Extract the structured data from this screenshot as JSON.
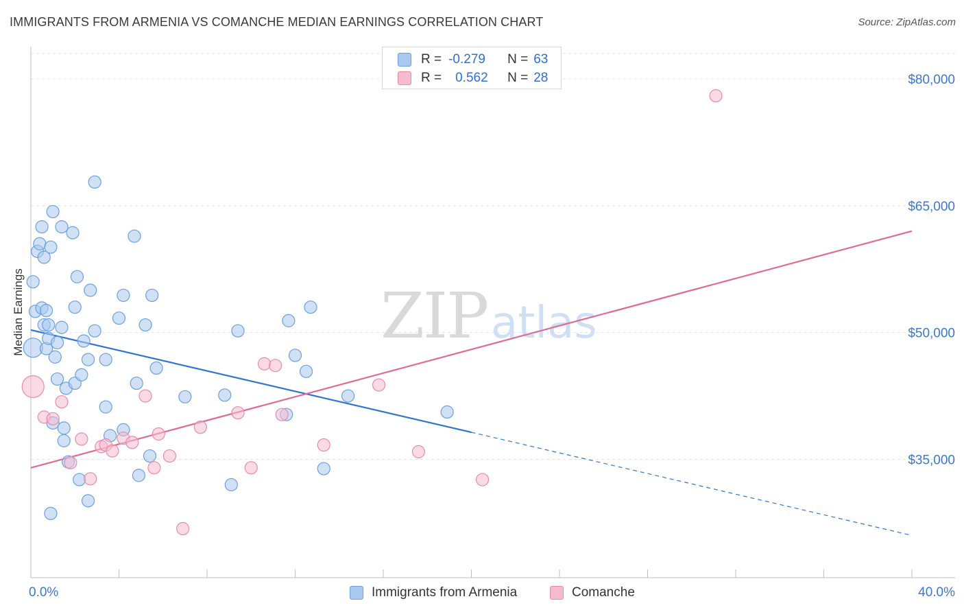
{
  "title": "IMMIGRANTS FROM ARMENIA VS COMANCHE MEDIAN EARNINGS CORRELATION CHART",
  "source": "Source: ZipAtlas.com",
  "watermark": {
    "zip": "ZIP",
    "atlas": "atlas"
  },
  "legend": {
    "rows": [
      {
        "r_label": "R =",
        "r_value": "-0.279",
        "n_label": "N =",
        "n_value": "63",
        "color": "#a9c8ef",
        "edge": "#6a9fe0"
      },
      {
        "r_label": "R =",
        "r_value": "0.562",
        "n_label": "N =",
        "n_value": "28",
        "color": "#f5bcd0",
        "edge": "#e98aaa"
      }
    ]
  },
  "chart_data": {
    "type": "scatter",
    "title": "IMMIGRANTS FROM ARMENIA VS COMANCHE MEDIAN EARNINGS CORRELATION CHART",
    "xlabel": "",
    "ylabel": "Median Earnings",
    "xlim": [
      0,
      40
    ],
    "ylim": [
      21000,
      83000
    ],
    "x_tick_labels": [
      "0.0%",
      "40.0%"
    ],
    "y_ticks": [
      35000,
      50000,
      65000,
      80000
    ],
    "y_tick_labels": [
      "$35,000",
      "$50,000",
      "$65,000",
      "$80,000"
    ],
    "grid": true,
    "legend_position": "top-center",
    "series": [
      {
        "name": "Immigrants from Armenia",
        "color": "#a9c8ef",
        "edge": "#6a9fe0",
        "line_color": "#2f74d0",
        "trend": {
          "x0": 0,
          "y0": 50300,
          "x1": 20,
          "y1": 38200,
          "dash_x1": 40,
          "dash_y1": 26000
        },
        "points": [
          [
            0.1,
            48200,
            14
          ],
          [
            0.1,
            56000,
            9
          ],
          [
            0.2,
            52500,
            9
          ],
          [
            0.3,
            59600,
            9
          ],
          [
            0.4,
            60500,
            9
          ],
          [
            0.5,
            62500,
            9
          ],
          [
            0.5,
            52900,
            9
          ],
          [
            0.6,
            58900,
            9
          ],
          [
            0.6,
            50900,
            9
          ],
          [
            0.7,
            52600,
            9
          ],
          [
            0.7,
            48100,
            9
          ],
          [
            0.8,
            50900,
            9
          ],
          [
            0.8,
            49300,
            9
          ],
          [
            0.9,
            60100,
            9
          ],
          [
            0.9,
            28600,
            9
          ],
          [
            1.0,
            64300,
            9
          ],
          [
            1.0,
            39300,
            9
          ],
          [
            1.1,
            47100,
            9
          ],
          [
            1.2,
            48800,
            9
          ],
          [
            1.2,
            44500,
            9
          ],
          [
            1.4,
            62500,
            9
          ],
          [
            1.4,
            50600,
            9
          ],
          [
            1.5,
            38700,
            9
          ],
          [
            1.5,
            37200,
            9
          ],
          [
            1.6,
            43400,
            9
          ],
          [
            1.7,
            34700,
            9
          ],
          [
            1.9,
            61800,
            9
          ],
          [
            2.0,
            53000,
            9
          ],
          [
            2.0,
            44000,
            9
          ],
          [
            2.1,
            56600,
            9
          ],
          [
            2.2,
            32600,
            9
          ],
          [
            2.3,
            45000,
            9
          ],
          [
            2.4,
            49000,
            9
          ],
          [
            2.6,
            46800,
            9
          ],
          [
            2.6,
            30100,
            9
          ],
          [
            2.7,
            55000,
            9
          ],
          [
            2.9,
            50200,
            9
          ],
          [
            2.9,
            67800,
            9
          ],
          [
            3.4,
            46800,
            9
          ],
          [
            3.4,
            41200,
            9
          ],
          [
            3.6,
            37800,
            9
          ],
          [
            4.0,
            51700,
            9
          ],
          [
            4.2,
            38500,
            9
          ],
          [
            4.2,
            54400,
            9
          ],
          [
            4.7,
            61400,
            9
          ],
          [
            4.8,
            44000,
            9
          ],
          [
            4.9,
            33100,
            9
          ],
          [
            5.2,
            50900,
            9
          ],
          [
            5.4,
            35400,
            9
          ],
          [
            5.5,
            54400,
            9
          ],
          [
            5.7,
            45800,
            9
          ],
          [
            7.0,
            42400,
            9
          ],
          [
            8.8,
            42600,
            9
          ],
          [
            9.1,
            32000,
            9
          ],
          [
            9.4,
            50200,
            9
          ],
          [
            11.6,
            40300,
            9
          ],
          [
            11.7,
            51400,
            9
          ],
          [
            12.0,
            47300,
            9
          ],
          [
            12.5,
            45400,
            9
          ],
          [
            12.7,
            53000,
            9
          ],
          [
            13.3,
            33900,
            9
          ],
          [
            14.4,
            42500,
            9
          ],
          [
            18.9,
            40600,
            9
          ]
        ]
      },
      {
        "name": "Comanche",
        "color": "#f5bcd0",
        "edge": "#e98aaa",
        "line_color": "#e06a94",
        "trend": {
          "x0": 0,
          "y0": 34000,
          "x1": 40,
          "y1": 62000
        },
        "points": [
          [
            0.1,
            43600,
            16
          ],
          [
            0.6,
            40000,
            9
          ],
          [
            1.0,
            39800,
            9
          ],
          [
            1.8,
            34600,
            9
          ],
          [
            1.4,
            41800,
            9
          ],
          [
            2.3,
            37400,
            9
          ],
          [
            2.7,
            32700,
            9
          ],
          [
            3.2,
            36500,
            9
          ],
          [
            3.4,
            36700,
            9
          ],
          [
            3.7,
            36000,
            9
          ],
          [
            4.2,
            37500,
            9
          ],
          [
            4.6,
            37000,
            9
          ],
          [
            5.2,
            42500,
            9
          ],
          [
            5.6,
            34000,
            9
          ],
          [
            5.8,
            38000,
            9
          ],
          [
            6.3,
            35400,
            9
          ],
          [
            6.9,
            26800,
            9
          ],
          [
            7.7,
            38800,
            9
          ],
          [
            9.4,
            40500,
            9
          ],
          [
            10.0,
            34000,
            9
          ],
          [
            10.6,
            46300,
            9
          ],
          [
            11.1,
            46100,
            9
          ],
          [
            11.4,
            40300,
            9
          ],
          [
            13.3,
            36700,
            9
          ],
          [
            15.8,
            43800,
            9
          ],
          [
            17.6,
            35900,
            9
          ],
          [
            20.5,
            32600,
            9
          ],
          [
            31.1,
            78000,
            9
          ]
        ]
      }
    ]
  }
}
